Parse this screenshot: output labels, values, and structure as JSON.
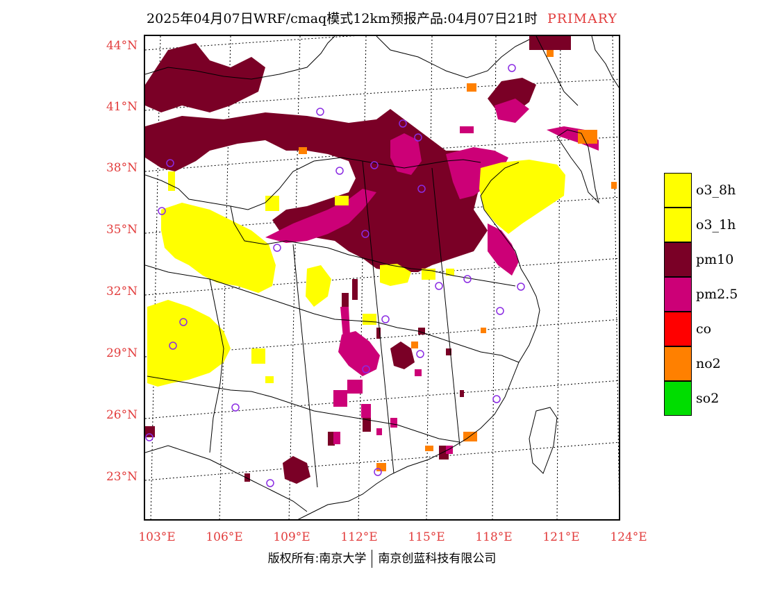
{
  "header": {
    "title": "2025年04月07日WRF/cmaq模式12km预报产品:04月07日21时",
    "tag": "PRIMARY"
  },
  "map": {
    "lat_labels": [
      "44°N",
      "41°N",
      "38°N",
      "35°N",
      "32°N",
      "29°N",
      "26°N",
      "23°N"
    ],
    "lon_labels": [
      "103°E",
      "106°E",
      "109°E",
      "112°E",
      "115°E",
      "118°E",
      "121°E",
      "124°E"
    ],
    "pollutant_colors": {
      "o3_8h": "#ffff00",
      "o3_1h": "#ffff00",
      "pm10": "#7a0026",
      "pm25": "#cc0077",
      "co": "#ff0000",
      "no2": "#ff8000",
      "so2": "#00dd00"
    },
    "station_marker_color": "#8a2be2"
  },
  "legend": {
    "items": [
      {
        "label": "o3_8h",
        "color": "#ffff00"
      },
      {
        "label": "o3_1h",
        "color": "#ffff00"
      },
      {
        "label": "pm10",
        "color": "#7a0026"
      },
      {
        "label": "pm2.5",
        "color": "#cc0077"
      },
      {
        "label": "co",
        "color": "#ff0000"
      },
      {
        "label": "no2",
        "color": "#ff8000"
      },
      {
        "label": "so2",
        "color": "#00dd00"
      }
    ]
  },
  "footer": {
    "left": "版权所有:南京大学",
    "right": "南京创蓝科技有限公司"
  }
}
